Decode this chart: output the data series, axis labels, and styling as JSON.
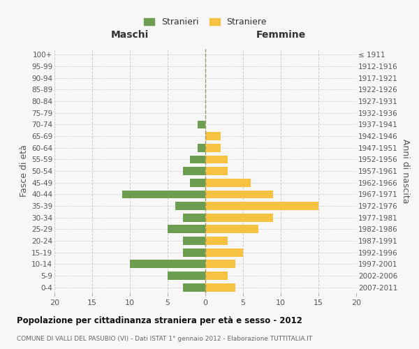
{
  "age_groups": [
    "0-4",
    "5-9",
    "10-14",
    "15-19",
    "20-24",
    "25-29",
    "30-34",
    "35-39",
    "40-44",
    "45-49",
    "50-54",
    "55-59",
    "60-64",
    "65-69",
    "70-74",
    "75-79",
    "80-84",
    "85-89",
    "90-94",
    "95-99",
    "100+"
  ],
  "birth_years": [
    "2007-2011",
    "2002-2006",
    "1997-2001",
    "1992-1996",
    "1987-1991",
    "1982-1986",
    "1977-1981",
    "1972-1976",
    "1967-1971",
    "1962-1966",
    "1957-1961",
    "1952-1956",
    "1947-1951",
    "1942-1946",
    "1937-1941",
    "1932-1936",
    "1927-1931",
    "1922-1926",
    "1917-1921",
    "1912-1916",
    "≤ 1911"
  ],
  "males": [
    3,
    5,
    10,
    3,
    3,
    5,
    3,
    4,
    11,
    2,
    3,
    2,
    1,
    0,
    1,
    0,
    0,
    0,
    0,
    0,
    0
  ],
  "females": [
    4,
    3,
    4,
    5,
    3,
    7,
    9,
    15,
    9,
    6,
    3,
    3,
    2,
    2,
    0,
    0,
    0,
    0,
    0,
    0,
    0
  ],
  "male_color": "#6d9e4f",
  "female_color": "#f5c242",
  "bg_color": "#f7f7f7",
  "grid_color": "#cccccc",
  "title": "Popolazione per cittadinanza straniera per età e sesso - 2012",
  "subtitle": "COMUNE DI VALLI DEL PASUBIO (VI) - Dati ISTAT 1° gennaio 2012 - Elaborazione TUTTITALIA.IT",
  "xlabel_left": "Maschi",
  "xlabel_right": "Femmine",
  "ylabel_left": "Fasce di età",
  "ylabel_right": "Anni di nascita",
  "xlim": 20,
  "legend_male": "Stranieri",
  "legend_female": "Straniere"
}
